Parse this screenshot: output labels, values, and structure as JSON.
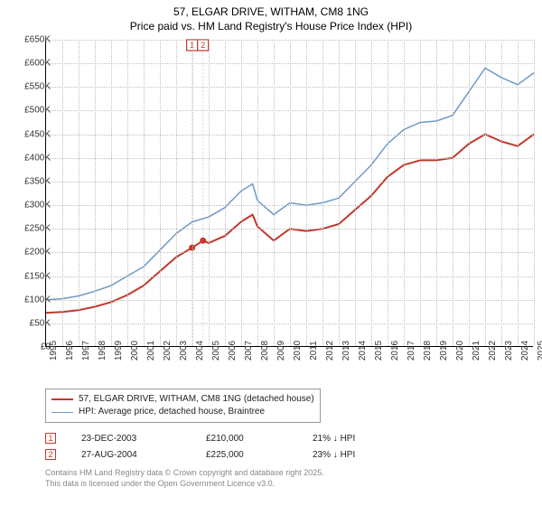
{
  "title": {
    "address": "57, ELGAR DRIVE, WITHAM, CM8 1NG",
    "subtitle": "Price paid vs. HM Land Registry's House Price Index (HPI)",
    "fontsize": 12
  },
  "chart": {
    "type": "line",
    "background_color": "#ffffff",
    "grid_color": "#bfbfbf",
    "axis_color": "#000000",
    "x": {
      "min": 1995,
      "max": 2025,
      "step": 1
    },
    "y": {
      "min": 0,
      "max": 650000,
      "step": 50000,
      "prefix": "£",
      "suffix": "K",
      "divisor": 1000
    },
    "series": [
      {
        "id": "price_paid",
        "label": "57, ELGAR DRIVE, WITHAM, CM8 1NG (detached house)",
        "color": "#c0392b",
        "width": 2,
        "points": [
          [
            1995,
            72000
          ],
          [
            1996,
            74000
          ],
          [
            1997,
            78000
          ],
          [
            1998,
            85000
          ],
          [
            1999,
            95000
          ],
          [
            2000,
            110000
          ],
          [
            2001,
            130000
          ],
          [
            2002,
            160000
          ],
          [
            2003,
            190000
          ],
          [
            2003.98,
            210000
          ],
          [
            2004.65,
            225000
          ],
          [
            2005,
            220000
          ],
          [
            2006,
            235000
          ],
          [
            2007,
            265000
          ],
          [
            2007.7,
            280000
          ],
          [
            2008,
            255000
          ],
          [
            2009,
            225000
          ],
          [
            2010,
            250000
          ],
          [
            2011,
            245000
          ],
          [
            2012,
            250000
          ],
          [
            2013,
            260000
          ],
          [
            2014,
            290000
          ],
          [
            2015,
            320000
          ],
          [
            2016,
            360000
          ],
          [
            2017,
            385000
          ],
          [
            2018,
            395000
          ],
          [
            2019,
            395000
          ],
          [
            2020,
            400000
          ],
          [
            2021,
            430000
          ],
          [
            2022,
            450000
          ],
          [
            2023,
            435000
          ],
          [
            2024,
            425000
          ],
          [
            2025,
            450000
          ]
        ]
      },
      {
        "id": "hpi",
        "label": "HPI: Average price, detached house, Braintree",
        "color": "#6f98c7",
        "width": 1.5,
        "points": [
          [
            1995,
            100000
          ],
          [
            1996,
            102000
          ],
          [
            1997,
            108000
          ],
          [
            1998,
            118000
          ],
          [
            1999,
            130000
          ],
          [
            2000,
            150000
          ],
          [
            2001,
            170000
          ],
          [
            2002,
            205000
          ],
          [
            2003,
            240000
          ],
          [
            2004,
            265000
          ],
          [
            2005,
            275000
          ],
          [
            2006,
            295000
          ],
          [
            2007,
            330000
          ],
          [
            2007.7,
            345000
          ],
          [
            2008,
            310000
          ],
          [
            2009,
            280000
          ],
          [
            2010,
            305000
          ],
          [
            2011,
            300000
          ],
          [
            2012,
            305000
          ],
          [
            2013,
            315000
          ],
          [
            2014,
            350000
          ],
          [
            2015,
            385000
          ],
          [
            2016,
            430000
          ],
          [
            2017,
            460000
          ],
          [
            2018,
            475000
          ],
          [
            2019,
            478000
          ],
          [
            2020,
            490000
          ],
          [
            2021,
            540000
          ],
          [
            2022,
            590000
          ],
          [
            2023,
            570000
          ],
          [
            2024,
            555000
          ],
          [
            2025,
            580000
          ]
        ]
      }
    ],
    "sale_markers": [
      {
        "index": "1",
        "year": 2003.98,
        "price": 210000
      },
      {
        "index": "2",
        "year": 2004.65,
        "price": 225000
      }
    ]
  },
  "legend": {
    "items": [
      {
        "color": "#c0392b",
        "width": 2,
        "label_path": "chart.series.0.label"
      },
      {
        "color": "#6f98c7",
        "width": 1.5,
        "label_path": "chart.series.1.label"
      }
    ]
  },
  "sales": [
    {
      "index": "1",
      "date": "23-DEC-2003",
      "price": "£210,000",
      "delta": "21% ↓ HPI"
    },
    {
      "index": "2",
      "date": "27-AUG-2004",
      "price": "£225,000",
      "delta": "23% ↓ HPI"
    }
  ],
  "footer": {
    "line1": "Contains HM Land Registry data © Crown copyright and database right 2025.",
    "line2": "This data is licensed under the Open Government Licence v3.0."
  }
}
